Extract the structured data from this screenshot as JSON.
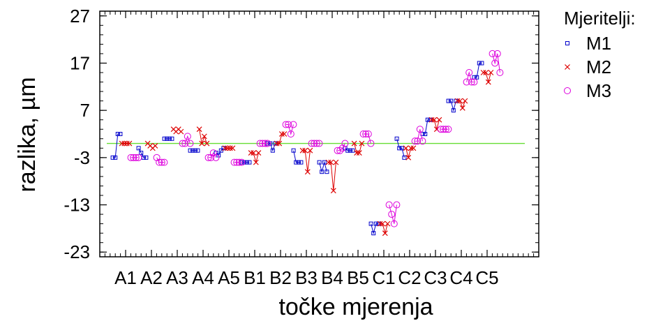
{
  "chart_data": {
    "type": "scatter",
    "xlabel": "točke mjerenja",
    "ylabel": "razlika, µm",
    "ylim": [
      -24,
      28
    ],
    "yticks": [
      27,
      17,
      7,
      -3,
      -13,
      -23
    ],
    "categories": [
      "A1",
      "A2",
      "A3",
      "A4",
      "A5",
      "B1",
      "B2",
      "B3",
      "B4",
      "B5",
      "C1",
      "C2",
      "C3",
      "C4",
      "C5"
    ],
    "reference_line": {
      "value": 0,
      "color": "#66dd33"
    },
    "legend": {
      "title": "Mjeritelji:",
      "position": "right"
    },
    "series": [
      {
        "name": "M1",
        "color": "#0000cc",
        "marker": "square",
        "groups": [
          [
            -3,
            -3,
            2,
            2
          ],
          [
            -1,
            -2,
            -3,
            -3
          ],
          [
            1,
            1,
            1,
            1
          ],
          [
            -1.5,
            -1.5,
            -1.5,
            -1.5
          ],
          [
            -2,
            -2.5,
            -1.5,
            -1
          ],
          [
            -4,
            -4,
            -4,
            -4
          ],
          [
            0,
            0,
            -1.5,
            0
          ],
          [
            -1.5,
            -4,
            -4,
            -4
          ],
          [
            -4,
            -6,
            -4,
            -6
          ],
          [
            -1,
            -1.5,
            -1.5,
            -1.5
          ],
          [
            -17,
            -19,
            -17,
            -17
          ],
          [
            1,
            -1,
            -1,
            -3
          ],
          [
            2,
            2,
            5,
            5
          ],
          [
            9,
            9,
            7,
            9
          ],
          [
            14,
            14,
            17,
            17
          ]
        ]
      },
      {
        "name": "M2",
        "color": "#dd0000",
        "marker": "x",
        "groups": [
          [
            0,
            0,
            0,
            0
          ],
          [
            0,
            -0.5,
            -1,
            -0.5
          ],
          [
            3,
            2.5,
            3,
            2.5
          ],
          [
            3,
            0,
            1.5,
            0
          ],
          [
            -1,
            -1,
            -1,
            -1
          ],
          [
            -2,
            -2,
            -4,
            -2
          ],
          [
            0,
            0,
            2,
            2
          ],
          [
            -1.5,
            -1.5,
            -6,
            -1.5
          ],
          [
            -4,
            -4,
            -10,
            -4
          ],
          [
            0,
            -2,
            -2,
            0
          ],
          [
            -17,
            -17,
            -19,
            -17
          ],
          [
            -1,
            -3,
            -1,
            -1
          ],
          [
            5,
            5,
            3,
            5
          ],
          [
            9,
            9,
            7.5,
            9
          ],
          [
            15,
            15,
            13,
            15
          ]
        ]
      },
      {
        "name": "M3",
        "color": "#dd00dd",
        "marker": "circle",
        "groups": [
          [
            -3,
            -3,
            -3,
            -3
          ],
          [
            -3,
            -4,
            -4,
            -4
          ],
          [
            0,
            0,
            1.5,
            0
          ],
          [
            -3,
            -3,
            -2,
            -3
          ],
          [
            -4,
            -4,
            -4,
            -4
          ],
          [
            0,
            0,
            0,
            0
          ],
          [
            4,
            4,
            2,
            4
          ],
          [
            0,
            0,
            0,
            0
          ],
          [
            -1.5,
            -1.5,
            -1,
            0
          ],
          [
            2,
            2,
            2,
            0
          ],
          [
            -13,
            -15,
            -17,
            -13
          ],
          [
            0.5,
            0.5,
            3,
            0.5
          ],
          [
            3,
            3,
            3,
            3
          ],
          [
            13,
            15,
            13,
            13
          ],
          [
            19,
            17,
            19,
            15
          ]
        ]
      }
    ]
  }
}
